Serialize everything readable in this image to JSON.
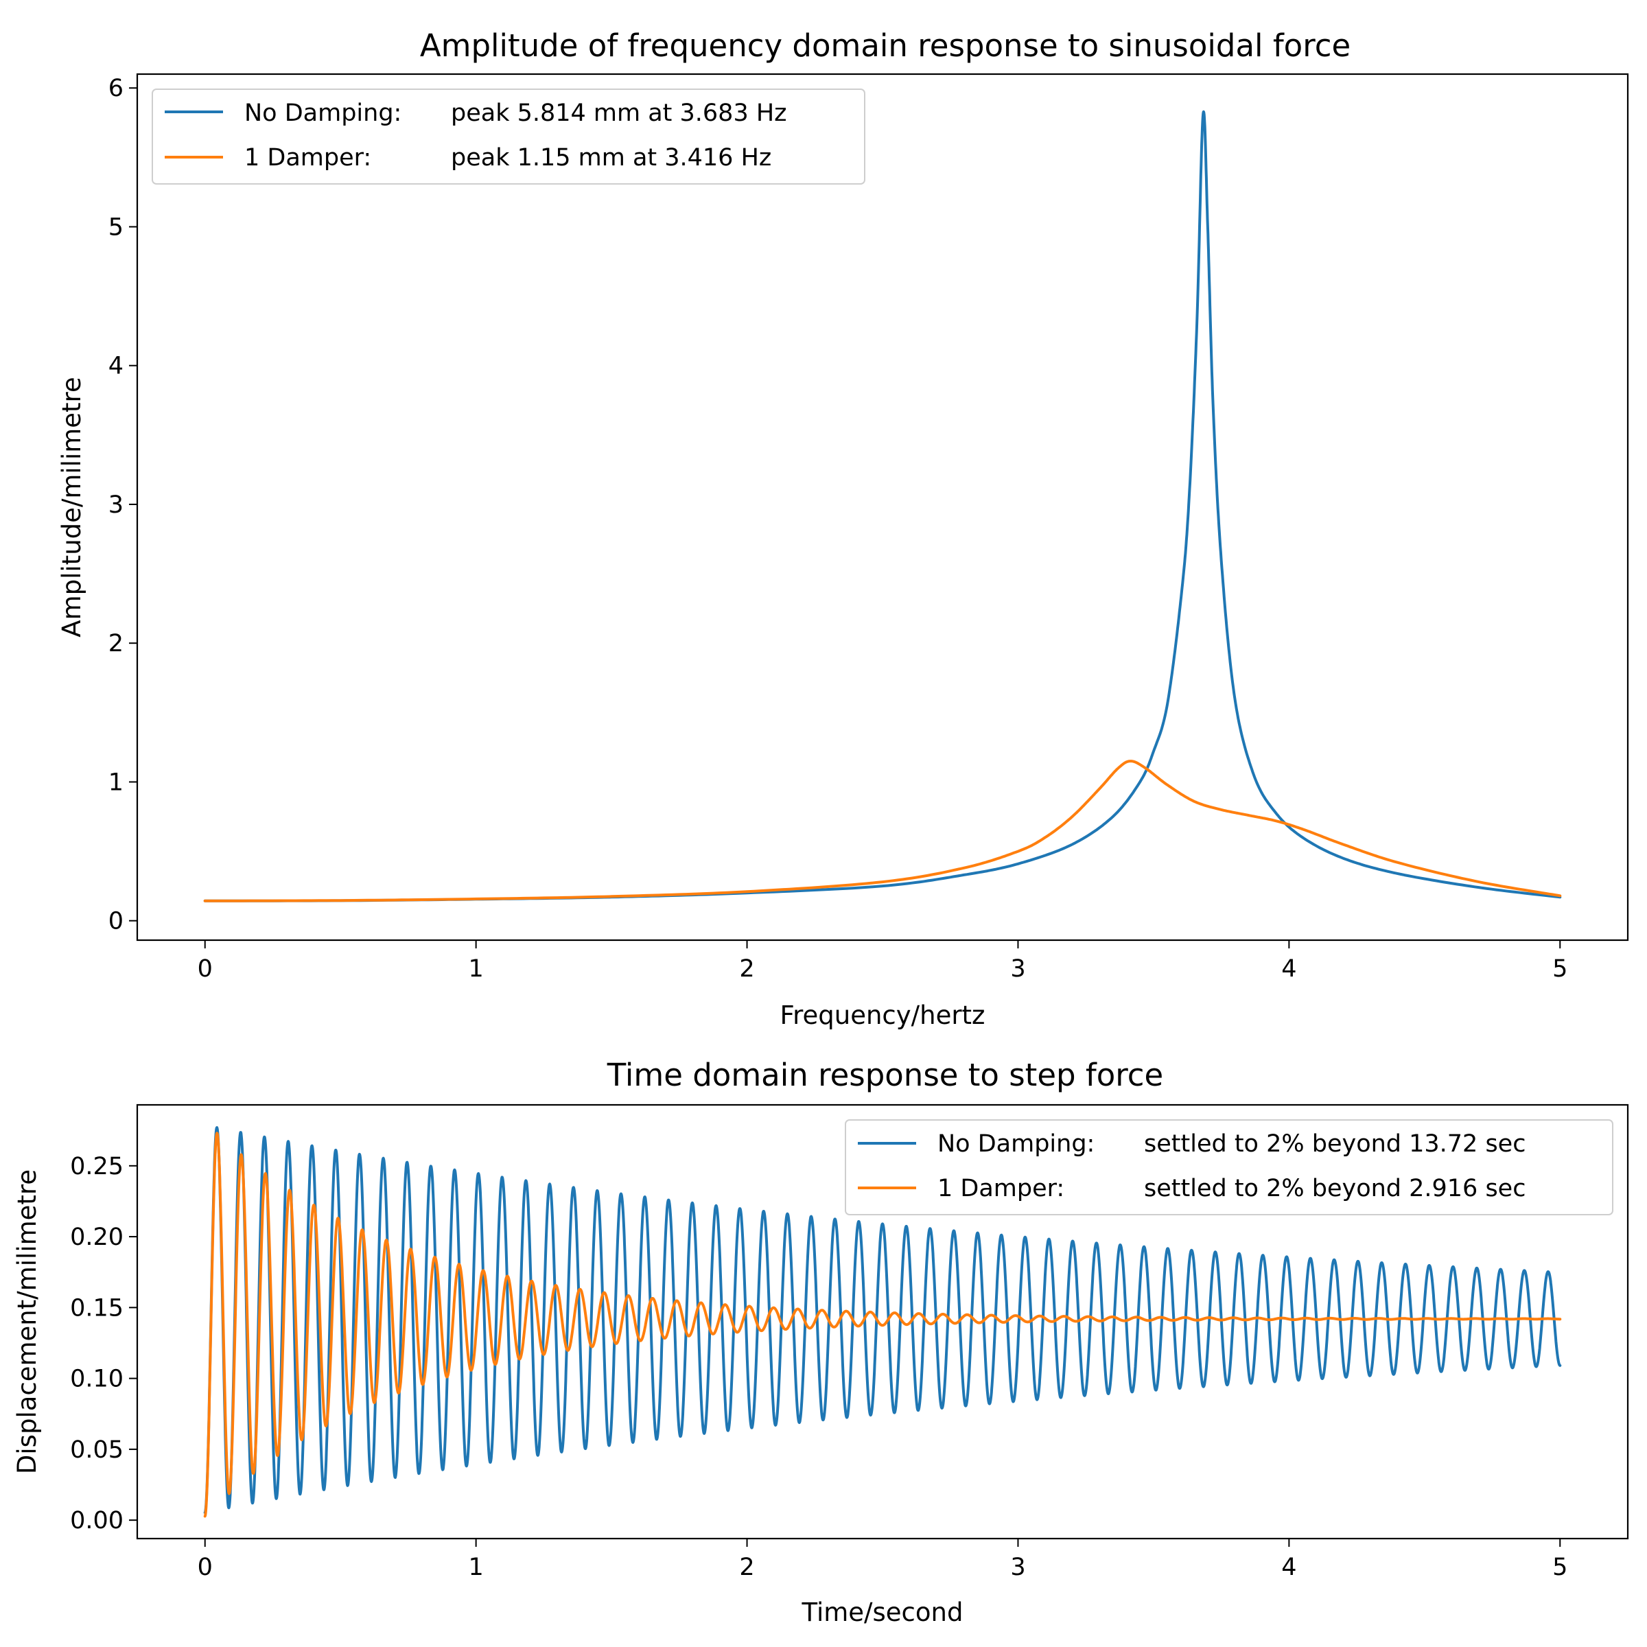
{
  "chart_data": [
    {
      "type": "line",
      "title": "Amplitude of frequency domain response to sinusoidal force",
      "xlabel": "Frequency/hertz",
      "ylabel": "Amplitude/milimetre",
      "xlim": [
        -0.25,
        5.25
      ],
      "ylim": [
        -0.14,
        6.1
      ],
      "xticks": [
        0,
        1,
        2,
        3,
        4,
        5
      ],
      "xtick_labels": [
        "0",
        "1",
        "2",
        "3",
        "4",
        "5"
      ],
      "yticks": [
        0,
        1,
        2,
        3,
        4,
        5,
        6
      ],
      "ytick_labels": [
        "0",
        "1",
        "2",
        "3",
        "4",
        "5",
        "6"
      ],
      "grid": false,
      "legend_position": "top-left",
      "series": [
        {
          "name": "No Damping:",
          "legend_detail": "peak 5.814 mm at 3.683 Hz",
          "color": "#1f77b4",
          "x": [
            0,
            0.5,
            1.0,
            1.5,
            2.0,
            2.5,
            2.8,
            3.0,
            3.2,
            3.35,
            3.45,
            3.5,
            3.55,
            3.6,
            3.63,
            3.66,
            3.683,
            3.7,
            3.72,
            3.75,
            3.8,
            3.87,
            3.95,
            4.05,
            4.2,
            4.4,
            4.7,
            5.0
          ],
          "y": [
            0.143,
            0.145,
            0.155,
            0.17,
            0.2,
            0.25,
            0.33,
            0.41,
            0.55,
            0.75,
            1.0,
            1.22,
            1.55,
            2.3,
            3.0,
            4.3,
            5.814,
            5.0,
            3.7,
            2.6,
            1.6,
            1.05,
            0.78,
            0.6,
            0.45,
            0.34,
            0.24,
            0.17
          ]
        },
        {
          "name": "1 Damper:",
          "legend_detail": "peak 1.15 mm at 3.416 Hz",
          "color": "#ff7f0e",
          "x": [
            0,
            0.5,
            1.0,
            1.5,
            2.0,
            2.5,
            2.8,
            3.0,
            3.1,
            3.2,
            3.3,
            3.37,
            3.416,
            3.47,
            3.55,
            3.65,
            3.75,
            3.85,
            3.95,
            4.05,
            4.2,
            4.4,
            4.7,
            5.0
          ],
          "y": [
            0.143,
            0.146,
            0.157,
            0.175,
            0.21,
            0.28,
            0.38,
            0.5,
            0.6,
            0.75,
            0.95,
            1.1,
            1.15,
            1.1,
            0.98,
            0.86,
            0.8,
            0.76,
            0.72,
            0.66,
            0.55,
            0.42,
            0.28,
            0.18
          ]
        }
      ]
    },
    {
      "type": "line",
      "title": "Time domain response to step force",
      "xlabel": "Time/second",
      "ylabel": "Displacement/milimetre",
      "xlim": [
        -0.25,
        5.25
      ],
      "ylim": [
        -0.013,
        0.293
      ],
      "xticks": [
        0,
        1,
        2,
        3,
        4,
        5
      ],
      "xtick_labels": [
        "0",
        "1",
        "2",
        "3",
        "4",
        "5"
      ],
      "yticks": [
        0,
        0.05,
        0.1,
        0.15,
        0.2,
        0.25
      ],
      "ytick_labels": [
        "0.00",
        "0.05",
        "0.10",
        "0.15",
        "0.20",
        "0.25"
      ],
      "grid": false,
      "legend_position": "top-right",
      "steady_state": 0.142,
      "series": [
        {
          "name": "No Damping:",
          "legend_detail": "settled to 2% beyond 13.72 sec",
          "color": "#1f77b4",
          "response": {
            "frequency_hz": 11.4,
            "first_peak": 0.277,
            "decay_per_sec": 0.285
          }
        },
        {
          "name": "1 Damper:",
          "legend_detail": "settled to 2% beyond 2.916 sec",
          "color": "#ff7f0e",
          "response": {
            "frequency_hz": 11.2,
            "first_peak": 0.273,
            "decay_per_sec": 1.37
          }
        }
      ]
    }
  ]
}
